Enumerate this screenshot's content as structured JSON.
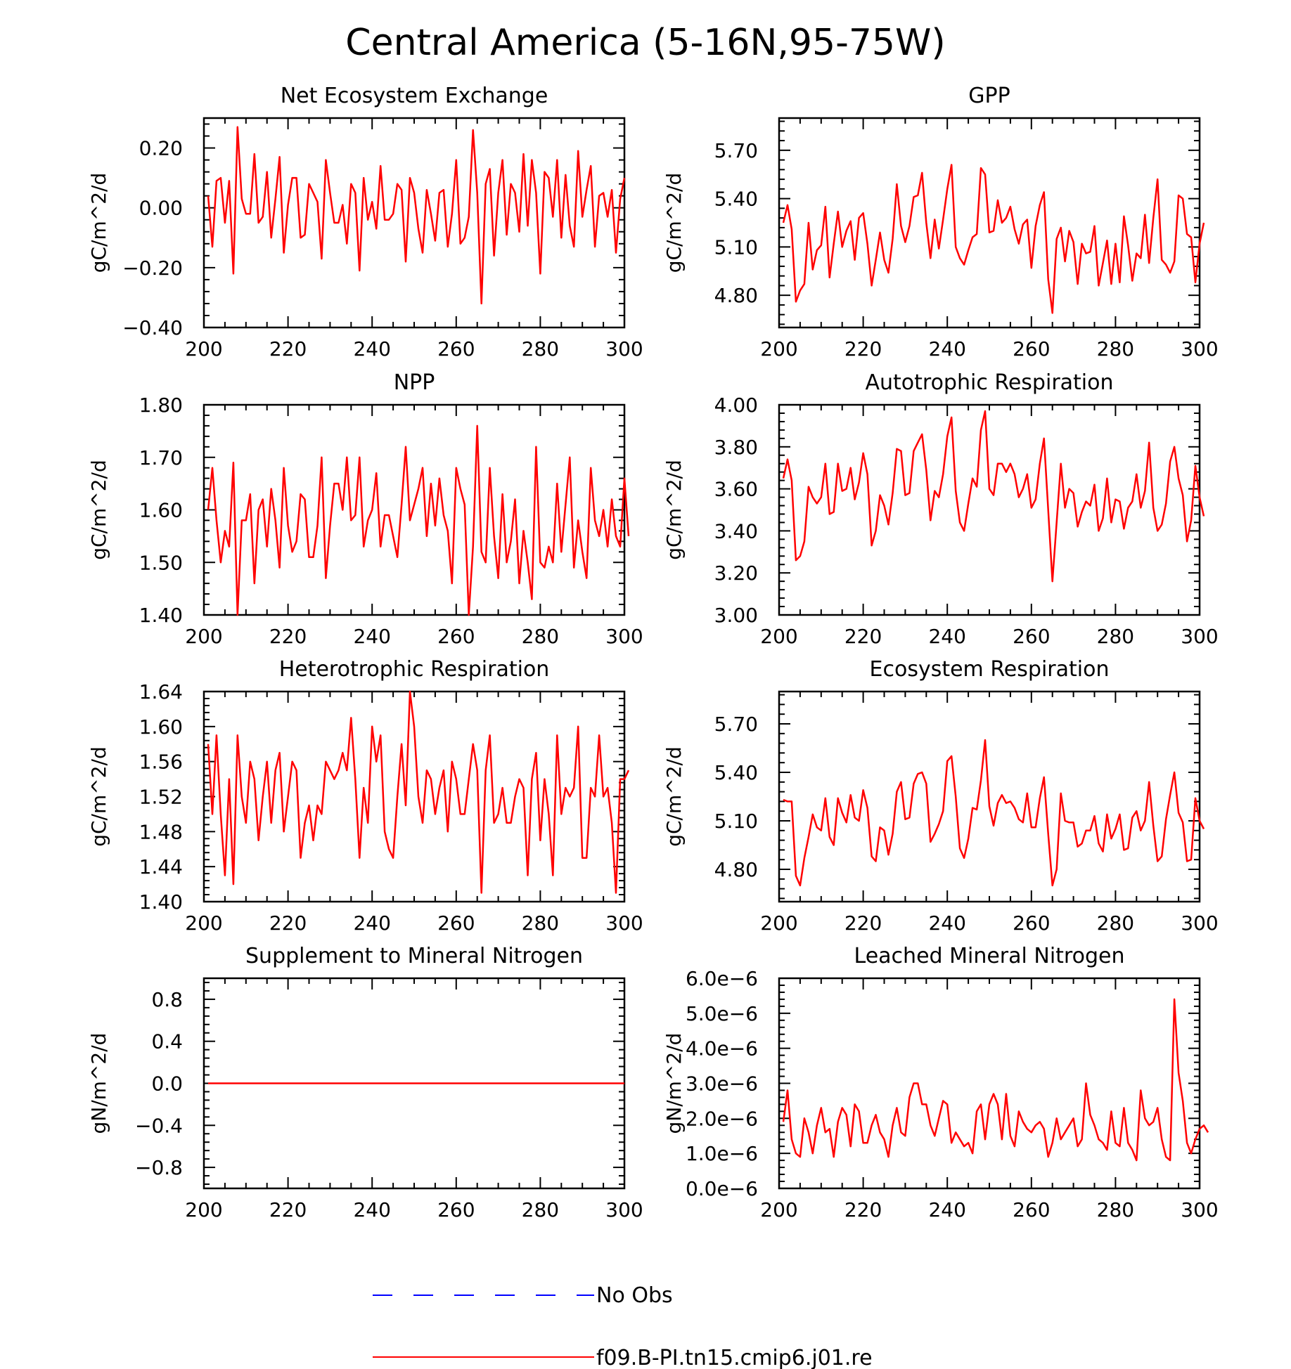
{
  "figure": {
    "title": "Central America (5-16N,95-75W)"
  },
  "legend": {
    "entries": [
      {
        "label": "No Obs",
        "color": "#0000ff",
        "style": "dashed"
      },
      {
        "label": "f09.B-PI.tn15.cmip6.j01.re",
        "color": "#ff0000",
        "style": "solid"
      }
    ]
  },
  "colors": {
    "series": "#ff0000",
    "obs": "#0000ff",
    "axes": "#000000"
  },
  "chart_data": [
    {
      "type": "line",
      "title": "Net Ecosystem Exchange",
      "ylabel": "gC/m^2/d",
      "x_start": 201,
      "xlim": [
        200,
        300
      ],
      "xticks": [
        200,
        220,
        240,
        260,
        280,
        300
      ],
      "ylim": [
        -0.4,
        0.3
      ],
      "yticks": [
        -0.4,
        -0.2,
        0.0,
        0.2
      ],
      "ytick_labels": [
        "−0.40",
        "−0.20",
        "0.00",
        "0.20"
      ],
      "series": [
        {
          "values": [
            0.04,
            -0.13,
            0.09,
            0.1,
            -0.05,
            0.09,
            -0.22,
            0.27,
            0.03,
            -0.02,
            -0.02,
            0.18,
            -0.05,
            -0.03,
            0.12,
            -0.1,
            0.03,
            0.17,
            -0.15,
            0.01,
            0.1,
            0.1,
            -0.1,
            -0.09,
            0.08,
            0.05,
            0.02,
            -0.17,
            0.16,
            0.05,
            -0.05,
            -0.05,
            0.01,
            -0.12,
            0.08,
            0.05,
            -0.21,
            0.1,
            -0.04,
            0.02,
            -0.07,
            0.14,
            -0.04,
            -0.04,
            -0.02,
            0.08,
            0.06,
            -0.18,
            0.1,
            0.05,
            -0.07,
            -0.15,
            0.06,
            -0.02,
            -0.11,
            0.05,
            0.06,
            -0.13,
            -0.02,
            0.16,
            -0.12,
            -0.1,
            -0.03,
            0.26,
            0.05,
            -0.32,
            0.08,
            0.13,
            -0.16,
            0.05,
            0.16,
            -0.09,
            0.08,
            0.05,
            -0.08,
            0.18,
            -0.06,
            0.16,
            0.05,
            -0.22,
            0.12,
            0.1,
            -0.03,
            0.16,
            -0.1,
            0.11,
            -0.06,
            -0.13,
            0.19,
            -0.03,
            0.06,
            0.14,
            -0.13,
            0.04,
            0.05,
            -0.03,
            0.06,
            -0.15,
            0.03,
            0.1
          ]
        }
      ]
    },
    {
      "type": "line",
      "title": "GPP",
      "ylabel": "gC/m^2/d",
      "x_start": 201,
      "xlim": [
        200,
        300
      ],
      "xticks": [
        200,
        220,
        240,
        260,
        280,
        300
      ],
      "ylim": [
        4.6,
        5.9
      ],
      "yticks": [
        4.8,
        5.1,
        5.4,
        5.7
      ],
      "ytick_labels": [
        "4.80",
        "5.10",
        "5.40",
        "5.70"
      ],
      "series": [
        {
          "values": [
            5.25,
            5.36,
            5.21,
            4.76,
            4.83,
            4.87,
            5.25,
            4.96,
            5.08,
            5.11,
            5.35,
            4.91,
            5.12,
            5.32,
            5.1,
            5.2,
            5.26,
            5.02,
            5.28,
            5.31,
            5.12,
            4.86,
            5.02,
            5.19,
            5.02,
            4.94,
            5.15,
            5.49,
            5.23,
            5.13,
            5.23,
            5.41,
            5.42,
            5.56,
            5.25,
            5.03,
            5.27,
            5.09,
            5.27,
            5.46,
            5.61,
            5.1,
            5.03,
            4.99,
            5.08,
            5.16,
            5.18,
            5.59,
            5.55,
            5.19,
            5.2,
            5.39,
            5.25,
            5.28,
            5.35,
            5.21,
            5.12,
            5.24,
            5.27,
            4.97,
            5.23,
            5.36,
            5.44,
            4.9,
            4.69,
            5.15,
            5.22,
            5.01,
            5.2,
            5.13,
            4.87,
            5.12,
            5.06,
            5.07,
            5.23,
            4.86,
            5.0,
            5.14,
            4.87,
            5.12,
            4.88,
            5.29,
            5.11,
            4.89,
            5.06,
            5.03,
            5.3,
            5.0,
            5.28,
            5.52,
            5.02,
            4.99,
            4.94,
            5.01,
            5.42,
            5.4,
            5.18,
            5.16,
            4.88,
            5.12,
            5.25
          ]
        }
      ]
    },
    {
      "type": "line",
      "title": "NPP",
      "ylabel": "gC/m^2/d",
      "x_start": 201,
      "xlim": [
        200,
        300
      ],
      "xticks": [
        200,
        220,
        240,
        260,
        280,
        300
      ],
      "ylim": [
        1.4,
        1.8
      ],
      "yticks": [
        1.4,
        1.5,
        1.6,
        1.7,
        1.8
      ],
      "ytick_labels": [
        "1.40",
        "1.50",
        "1.60",
        "1.70",
        "1.80"
      ],
      "series": [
        {
          "values": [
            1.6,
            1.68,
            1.58,
            1.5,
            1.56,
            1.53,
            1.69,
            1.4,
            1.58,
            1.58,
            1.63,
            1.46,
            1.6,
            1.62,
            1.53,
            1.64,
            1.58,
            1.49,
            1.68,
            1.57,
            1.52,
            1.54,
            1.63,
            1.62,
            1.51,
            1.51,
            1.57,
            1.7,
            1.47,
            1.57,
            1.65,
            1.65,
            1.6,
            1.7,
            1.58,
            1.59,
            1.7,
            1.53,
            1.58,
            1.6,
            1.67,
            1.53,
            1.59,
            1.59,
            1.55,
            1.51,
            1.61,
            1.72,
            1.58,
            1.61,
            1.64,
            1.68,
            1.55,
            1.65,
            1.57,
            1.66,
            1.59,
            1.56,
            1.46,
            1.68,
            1.64,
            1.61,
            1.4,
            1.53,
            1.76,
            1.52,
            1.5,
            1.68,
            1.55,
            1.47,
            1.63,
            1.5,
            1.54,
            1.62,
            1.46,
            1.56,
            1.5,
            1.43,
            1.72,
            1.5,
            1.49,
            1.53,
            1.5,
            1.65,
            1.52,
            1.61,
            1.7,
            1.49,
            1.58,
            1.52,
            1.47,
            1.68,
            1.58,
            1.55,
            1.6,
            1.53,
            1.62,
            1.55,
            1.53,
            1.66,
            1.55
          ]
        }
      ]
    },
    {
      "type": "line",
      "title": "Autotrophic Respiration",
      "ylabel": "gC/m^2/d",
      "x_start": 201,
      "xlim": [
        200,
        300
      ],
      "xticks": [
        200,
        220,
        240,
        260,
        280,
        300
      ],
      "ylim": [
        3.0,
        4.0
      ],
      "yticks": [
        3.0,
        3.2,
        3.4,
        3.6,
        3.8,
        4.0
      ],
      "ytick_labels": [
        "3.00",
        "3.20",
        "3.40",
        "3.60",
        "3.80",
        "4.00"
      ],
      "series": [
        {
          "values": [
            3.65,
            3.74,
            3.64,
            3.26,
            3.28,
            3.35,
            3.61,
            3.56,
            3.53,
            3.56,
            3.72,
            3.48,
            3.49,
            3.72,
            3.59,
            3.6,
            3.7,
            3.55,
            3.63,
            3.77,
            3.67,
            3.33,
            3.4,
            3.57,
            3.52,
            3.43,
            3.58,
            3.79,
            3.78,
            3.57,
            3.58,
            3.78,
            3.82,
            3.86,
            3.69,
            3.45,
            3.59,
            3.56,
            3.67,
            3.85,
            3.94,
            3.59,
            3.44,
            3.4,
            3.53,
            3.65,
            3.61,
            3.88,
            3.97,
            3.6,
            3.57,
            3.72,
            3.72,
            3.68,
            3.72,
            3.67,
            3.56,
            3.6,
            3.67,
            3.51,
            3.55,
            3.72,
            3.84,
            3.5,
            3.16,
            3.44,
            3.72,
            3.51,
            3.6,
            3.58,
            3.42,
            3.49,
            3.54,
            3.52,
            3.62,
            3.4,
            3.46,
            3.65,
            3.44,
            3.55,
            3.54,
            3.41,
            3.51,
            3.54,
            3.67,
            3.51,
            3.59,
            3.82,
            3.51,
            3.4,
            3.43,
            3.53,
            3.73,
            3.8,
            3.65,
            3.57,
            3.35,
            3.45,
            3.71,
            3.56,
            3.47
          ]
        }
      ]
    },
    {
      "type": "line",
      "title": "Heterotrophic Respiration",
      "ylabel": "gC/m^2/d",
      "x_start": 201,
      "xlim": [
        200,
        300
      ],
      "xticks": [
        200,
        220,
        240,
        260,
        280,
        300
      ],
      "ylim": [
        1.4,
        1.64
      ],
      "yticks": [
        1.4,
        1.44,
        1.48,
        1.52,
        1.56,
        1.6,
        1.64
      ],
      "ytick_labels": [
        "1.40",
        "1.44",
        "1.48",
        "1.52",
        "1.56",
        "1.60",
        "1.64"
      ],
      "series": [
        {
          "values": [
            1.58,
            1.5,
            1.59,
            1.5,
            1.43,
            1.54,
            1.42,
            1.59,
            1.52,
            1.49,
            1.56,
            1.54,
            1.47,
            1.52,
            1.56,
            1.49,
            1.55,
            1.57,
            1.48,
            1.52,
            1.56,
            1.55,
            1.45,
            1.49,
            1.51,
            1.47,
            1.51,
            1.5,
            1.56,
            1.55,
            1.54,
            1.55,
            1.57,
            1.55,
            1.61,
            1.54,
            1.45,
            1.53,
            1.49,
            1.6,
            1.56,
            1.59,
            1.48,
            1.46,
            1.45,
            1.52,
            1.58,
            1.51,
            1.64,
            1.6,
            1.52,
            1.49,
            1.55,
            1.54,
            1.5,
            1.53,
            1.55,
            1.48,
            1.56,
            1.54,
            1.5,
            1.5,
            1.54,
            1.58,
            1.55,
            1.41,
            1.55,
            1.59,
            1.49,
            1.5,
            1.53,
            1.49,
            1.49,
            1.52,
            1.54,
            1.53,
            1.43,
            1.54,
            1.57,
            1.47,
            1.54,
            1.5,
            1.43,
            1.59,
            1.5,
            1.53,
            1.52,
            1.53,
            1.6,
            1.45,
            1.45,
            1.53,
            1.52,
            1.59,
            1.52,
            1.53,
            1.49,
            1.41,
            1.54,
            1.54,
            1.55
          ]
        }
      ]
    },
    {
      "type": "line",
      "title": "Ecosystem Respiration",
      "ylabel": "gC/m^2/d",
      "x_start": 201,
      "xlim": [
        200,
        300
      ],
      "xticks": [
        200,
        220,
        240,
        260,
        280,
        300
      ],
      "ylim": [
        4.6,
        5.9
      ],
      "yticks": [
        4.8,
        5.1,
        5.4,
        5.7
      ],
      "ytick_labels": [
        "4.80",
        "5.10",
        "5.40",
        "5.70"
      ],
      "series": [
        {
          "values": [
            5.23,
            5.22,
            5.22,
            4.76,
            4.7,
            4.87,
            5.0,
            5.14,
            5.06,
            5.04,
            5.24,
            5.0,
            4.95,
            5.24,
            5.15,
            5.09,
            5.26,
            5.12,
            5.1,
            5.29,
            5.18,
            4.88,
            4.85,
            5.06,
            5.04,
            4.89,
            5.02,
            5.28,
            5.34,
            5.11,
            5.12,
            5.33,
            5.39,
            5.4,
            5.33,
            4.97,
            5.02,
            5.08,
            5.16,
            5.47,
            5.5,
            5.25,
            4.93,
            4.87,
            4.99,
            5.18,
            5.17,
            5.35,
            5.6,
            5.19,
            5.07,
            5.21,
            5.26,
            5.21,
            5.22,
            5.18,
            5.11,
            5.09,
            5.27,
            5.06,
            5.06,
            5.24,
            5.37,
            5.02,
            4.7,
            4.8,
            5.27,
            5.1,
            5.09,
            5.09,
            4.94,
            4.96,
            5.04,
            5.04,
            5.13,
            4.96,
            4.91,
            5.14,
            4.99,
            5.05,
            5.14,
            4.92,
            4.93,
            5.12,
            5.16,
            5.04,
            5.1,
            5.34,
            5.07,
            4.85,
            4.88,
            5.11,
            5.26,
            5.4,
            5.15,
            5.09,
            4.85,
            4.86,
            5.24,
            5.1,
            5.05
          ]
        }
      ]
    },
    {
      "type": "line",
      "title": "Supplement to Mineral Nitrogen",
      "ylabel": "gN/m^2/d",
      "x_start": 201,
      "xlim": [
        200,
        300
      ],
      "xticks": [
        200,
        220,
        240,
        260,
        280,
        300
      ],
      "ylim": [
        -1.0,
        1.0
      ],
      "yticks": [
        -0.8,
        -0.4,
        0.0,
        0.4,
        0.8
      ],
      "ytick_labels": [
        "−0.8",
        "−0.4",
        "0.0",
        "0.4",
        "0.8"
      ],
      "series": [
        {
          "values": [
            0,
            0,
            0,
            0,
            0,
            0,
            0,
            0,
            0,
            0,
            0,
            0,
            0,
            0,
            0,
            0,
            0,
            0,
            0,
            0,
            0,
            0,
            0,
            0,
            0,
            0,
            0,
            0,
            0,
            0,
            0,
            0,
            0,
            0,
            0,
            0,
            0,
            0,
            0,
            0,
            0,
            0,
            0,
            0,
            0,
            0,
            0,
            0,
            0,
            0,
            0,
            0,
            0,
            0,
            0,
            0,
            0,
            0,
            0,
            0,
            0,
            0,
            0,
            0,
            0,
            0,
            0,
            0,
            0,
            0,
            0,
            0,
            0,
            0,
            0,
            0,
            0,
            0,
            0,
            0,
            0,
            0,
            0,
            0,
            0,
            0,
            0,
            0,
            0,
            0,
            0,
            0,
            0,
            0,
            0,
            0,
            0,
            0,
            0,
            0
          ]
        }
      ]
    },
    {
      "type": "line",
      "title": "Leached Mineral Nitrogen",
      "ylabel": "gN/m^2/d",
      "x_start": 201,
      "xlim": [
        200,
        300
      ],
      "xticks": [
        200,
        220,
        240,
        260,
        280,
        300
      ],
      "ylim": [
        0,
        6e-06
      ],
      "yticks": [
        0,
        1e-06,
        2e-06,
        3e-06,
        4e-06,
        5e-06,
        6e-06
      ],
      "ytick_labels": [
        "0.0e−6",
        "1.0e−6",
        "2.0e−6",
        "3.0e−6",
        "4.0e−6",
        "5.0e−6",
        "6.0e−6"
      ],
      "series": [
        {
          "values": [
            1.9e-06,
            2.8e-06,
            1.4e-06,
            1e-06,
            9e-07,
            2e-06,
            1.6e-06,
            1e-06,
            1.8e-06,
            2.3e-06,
            1.6e-06,
            1.7e-06,
            9e-07,
            1.9e-06,
            2.3e-06,
            2.1e-06,
            1.2e-06,
            2.4e-06,
            2.2e-06,
            1.3e-06,
            1.3e-06,
            1.8e-06,
            2.1e-06,
            1.6e-06,
            1.4e-06,
            9e-07,
            1.8e-06,
            2.3e-06,
            1.6e-06,
            1.5e-06,
            2.6e-06,
            3e-06,
            3e-06,
            2.4e-06,
            2.4e-06,
            1.8e-06,
            1.5e-06,
            2e-06,
            2.5e-06,
            2.4e-06,
            1.3e-06,
            1.6e-06,
            1.4e-06,
            1.2e-06,
            1.3e-06,
            1e-06,
            2.2e-06,
            2.4e-06,
            1.4e-06,
            2.4e-06,
            2.7e-06,
            2.4e-06,
            1.4e-06,
            2.7e-06,
            1.5e-06,
            1.2e-06,
            2.2e-06,
            1.9e-06,
            1.7e-06,
            1.6e-06,
            1.8e-06,
            1.9e-06,
            1.7e-06,
            9e-07,
            1.3e-06,
            2e-06,
            1.4e-06,
            1.6e-06,
            1.8e-06,
            2e-06,
            1.2e-06,
            1.4e-06,
            3e-06,
            2.1e-06,
            1.8e-06,
            1.4e-06,
            1.3e-06,
            1.1e-06,
            2.2e-06,
            1.3e-06,
            1.2e-06,
            2.3e-06,
            1.3e-06,
            1.1e-06,
            8e-07,
            2.8e-06,
            2e-06,
            1.8e-06,
            1.9e-06,
            2.3e-06,
            1.4e-06,
            9e-07,
            8e-07,
            5.4e-06,
            3.3e-06,
            2.5e-06,
            1.3e-06,
            1e-06,
            1.4e-06,
            1.7e-06,
            1.8e-06,
            1.6e-06
          ]
        }
      ]
    }
  ]
}
